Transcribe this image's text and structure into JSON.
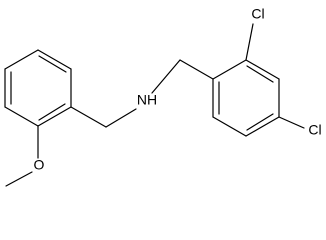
{
  "atoms": [
    {
      "label": "NH"
    },
    {
      "label": "Cl"
    },
    {
      "label": "Cl"
    },
    {
      "label": "O"
    }
  ]
}
